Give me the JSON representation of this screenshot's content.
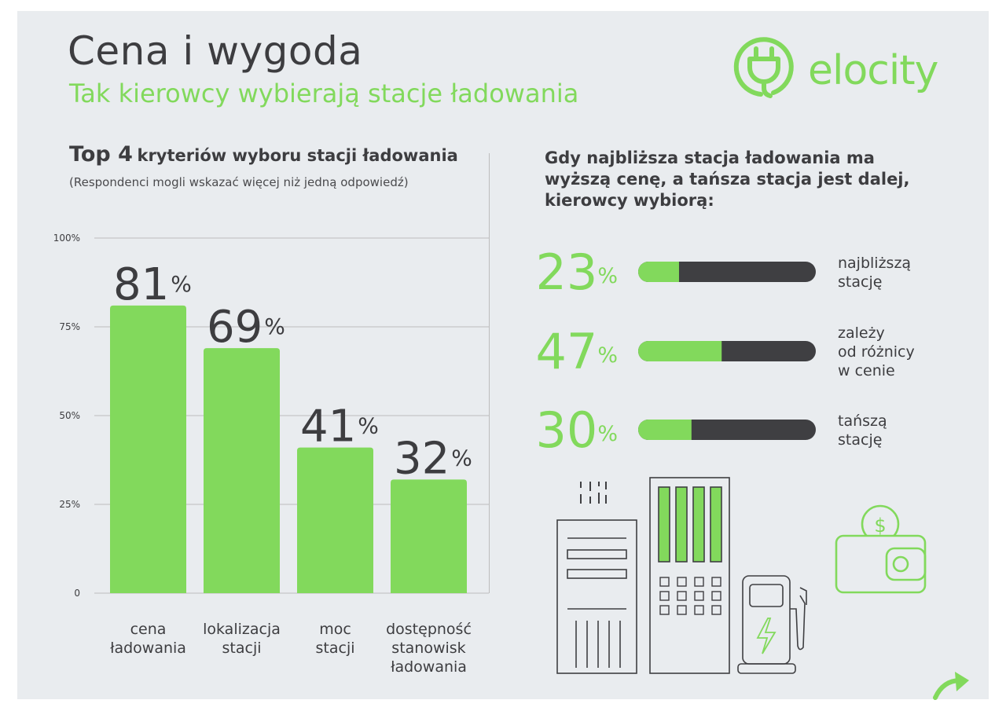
{
  "header": {
    "title": "Cena i wygoda",
    "subtitle": "Tak kierowcy wybierają stacje ładowania",
    "brand": "elocity"
  },
  "left_section": {
    "title_bold": "Top 4",
    "title_rest": "kryteriów wyboru stacji ładowania",
    "note": "(Respondenci mogli wskazać więcej niż jedną odpowiedź)"
  },
  "right_section": {
    "question": "Gdy najbliższa stacja ładowania ma wyższą cenę, a tańsza stacja jest dalej, kierowcy wybiorą:"
  },
  "colors": {
    "accent": "#82d95c",
    "dark": "#3f3f42",
    "background": "#e9ecef"
  },
  "icons": [
    "plug-icon",
    "wallet-coin-icon",
    "building-icon",
    "charging-station-icon",
    "fuel-pump-icon",
    "arrow-icon"
  ],
  "chart_data": [
    {
      "type": "bar",
      "categories": [
        [
          "cena",
          "ładowania"
        ],
        [
          "lokalizacja",
          "stacji"
        ],
        [
          "moc",
          "stacji"
        ],
        [
          "dostępność",
          "stanowisk",
          "ładowania"
        ]
      ],
      "values": [
        81,
        69,
        41,
        32
      ],
      "value_labels": [
        "81",
        "69",
        "41",
        "32"
      ],
      "value_unit": "%",
      "yticks": [
        "100%",
        "75%",
        "50%",
        "25%",
        "0"
      ],
      "ylim": [
        0,
        100
      ],
      "grid": true
    },
    {
      "type": "bar",
      "orientation": "horizontal",
      "items": [
        {
          "value": 23,
          "label_lines": [
            "najbliższą",
            "stację"
          ]
        },
        {
          "value": 47,
          "label_lines": [
            "zależy",
            "od różnicy",
            "w cenie"
          ]
        },
        {
          "value": 30,
          "label_lines": [
            "tańszą",
            "stację"
          ]
        }
      ],
      "value_unit": "%",
      "xlim": [
        0,
        100
      ]
    }
  ]
}
